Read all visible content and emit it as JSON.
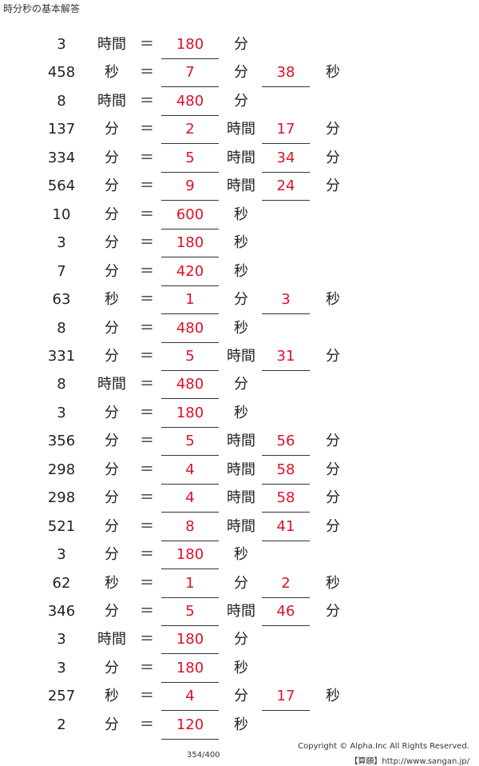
{
  "page_title": "時分秒の基本解答",
  "footer": {
    "page": "354/400",
    "copyright": "Copyright © Alpha.Inc All Rights Reserved.",
    "site": "【算願】http://www.sangan.jp/"
  },
  "equals_sign": "＝",
  "rows": [
    {
      "num": "3",
      "unit1": "時間",
      "ans1": "180",
      "unit2": "分",
      "ans2": "",
      "unit3": ""
    },
    {
      "num": "458",
      "unit1": "秒",
      "ans1": "7",
      "unit2": "分",
      "ans2": "38",
      "unit3": "秒"
    },
    {
      "num": "8",
      "unit1": "時間",
      "ans1": "480",
      "unit2": "分",
      "ans2": "",
      "unit3": ""
    },
    {
      "num": "137",
      "unit1": "分",
      "ans1": "2",
      "unit2": "時間",
      "ans2": "17",
      "unit3": "分"
    },
    {
      "num": "334",
      "unit1": "分",
      "ans1": "5",
      "unit2": "時間",
      "ans2": "34",
      "unit3": "分"
    },
    {
      "num": "564",
      "unit1": "分",
      "ans1": "9",
      "unit2": "時間",
      "ans2": "24",
      "unit3": "分"
    },
    {
      "num": "10",
      "unit1": "分",
      "ans1": "600",
      "unit2": "秒",
      "ans2": "",
      "unit3": ""
    },
    {
      "num": "3",
      "unit1": "分",
      "ans1": "180",
      "unit2": "秒",
      "ans2": "",
      "unit3": ""
    },
    {
      "num": "7",
      "unit1": "分",
      "ans1": "420",
      "unit2": "秒",
      "ans2": "",
      "unit3": ""
    },
    {
      "num": "63",
      "unit1": "秒",
      "ans1": "1",
      "unit2": "分",
      "ans2": "3",
      "unit3": "秒"
    },
    {
      "num": "8",
      "unit1": "分",
      "ans1": "480",
      "unit2": "秒",
      "ans2": "",
      "unit3": ""
    },
    {
      "num": "331",
      "unit1": "分",
      "ans1": "5",
      "unit2": "時間",
      "ans2": "31",
      "unit3": "分"
    },
    {
      "num": "8",
      "unit1": "時間",
      "ans1": "480",
      "unit2": "分",
      "ans2": "",
      "unit3": ""
    },
    {
      "num": "3",
      "unit1": "分",
      "ans1": "180",
      "unit2": "秒",
      "ans2": "",
      "unit3": ""
    },
    {
      "num": "356",
      "unit1": "分",
      "ans1": "5",
      "unit2": "時間",
      "ans2": "56",
      "unit3": "分"
    },
    {
      "num": "298",
      "unit1": "分",
      "ans1": "4",
      "unit2": "時間",
      "ans2": "58",
      "unit3": "分"
    },
    {
      "num": "298",
      "unit1": "分",
      "ans1": "4",
      "unit2": "時間",
      "ans2": "58",
      "unit3": "分"
    },
    {
      "num": "521",
      "unit1": "分",
      "ans1": "8",
      "unit2": "時間",
      "ans2": "41",
      "unit3": "分"
    },
    {
      "num": "3",
      "unit1": "分",
      "ans1": "180",
      "unit2": "秒",
      "ans2": "",
      "unit3": ""
    },
    {
      "num": "62",
      "unit1": "秒",
      "ans1": "1",
      "unit2": "分",
      "ans2": "2",
      "unit3": "秒"
    },
    {
      "num": "346",
      "unit1": "分",
      "ans1": "5",
      "unit2": "時間",
      "ans2": "46",
      "unit3": "分"
    },
    {
      "num": "3",
      "unit1": "時間",
      "ans1": "180",
      "unit2": "分",
      "ans2": "",
      "unit3": ""
    },
    {
      "num": "3",
      "unit1": "分",
      "ans1": "180",
      "unit2": "秒",
      "ans2": "",
      "unit3": ""
    },
    {
      "num": "257",
      "unit1": "秒",
      "ans1": "4",
      "unit2": "分",
      "ans2": "17",
      "unit3": "秒"
    },
    {
      "num": "2",
      "unit1": "分",
      "ans1": "120",
      "unit2": "秒",
      "ans2": "",
      "unit3": ""
    }
  ]
}
